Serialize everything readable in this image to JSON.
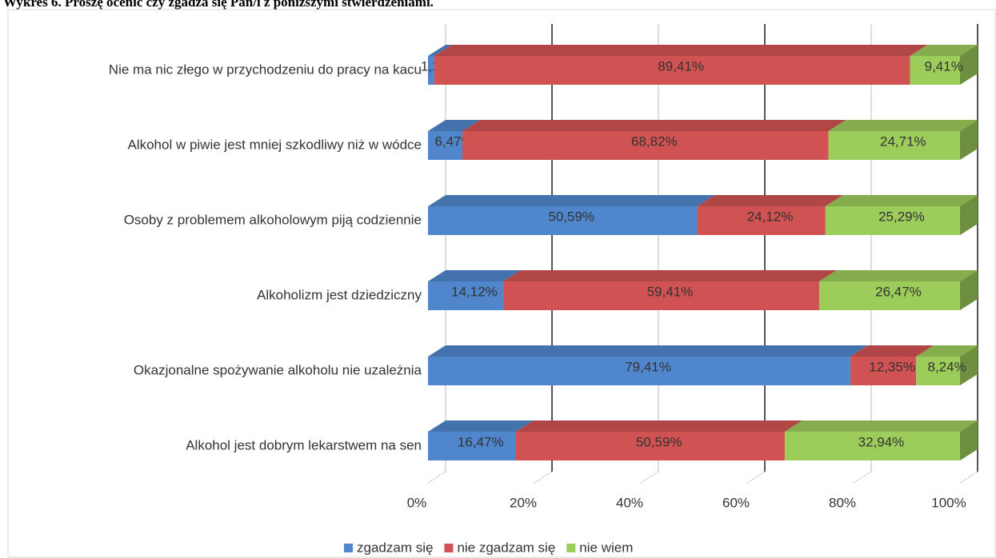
{
  "chart_data": {
    "type": "stacked-bar-horizontal",
    "title": "Wykres 6. Proszę ocenić czy zgadza się Pan/i z poniższymi stwierdzeniami.",
    "categories": [
      "Nie ma nic złego w przychodzeniu do pracy na kacu",
      "Alkohol w piwie jest mniej szkodliwy niż w wódce",
      "Osoby z problemem alkoholowym piją codziennie",
      "Alkoholizm jest dziedziczny",
      "Okazjonalne spożywanie alkoholu nie uzależnia",
      "Alkohol jest dobrym lekarstwem na sen"
    ],
    "series": [
      {
        "name": "zgadzam się",
        "color": "#4f86cc",
        "values": [
          1.18,
          6.47,
          50.59,
          14.12,
          79.41,
          16.47
        ],
        "value_labels": [
          "1,18%",
          "6,47%",
          "50,59%",
          "14,12%",
          "79,41%",
          "16,47%"
        ]
      },
      {
        "name": "nie zgadzam się",
        "color": "#d05252",
        "values": [
          89.41,
          68.82,
          24.12,
          59.41,
          12.35,
          50.59
        ],
        "value_labels": [
          "89,41%",
          "68,82%",
          "24,12%",
          "59,41%",
          "12,35%",
          "50,59%"
        ]
      },
      {
        "name": "nie wiem",
        "color": "#9ccc5a",
        "values": [
          9.41,
          24.71,
          25.29,
          26.47,
          8.24,
          32.94
        ],
        "value_labels": [
          "9,41%",
          "24,71%",
          "25,29%",
          "26,47%",
          "8,24%",
          "32,94%"
        ]
      }
    ],
    "xlim": [
      0,
      100
    ],
    "xticks": [
      {
        "value": 0,
        "label": "0%"
      },
      {
        "value": 20,
        "label": "20%"
      },
      {
        "value": 40,
        "label": "40%"
      },
      {
        "value": 60,
        "label": "60%"
      },
      {
        "value": 80,
        "label": "80%"
      },
      {
        "value": 100,
        "label": "100%"
      }
    ],
    "grid": true,
    "legend": "bottom"
  }
}
